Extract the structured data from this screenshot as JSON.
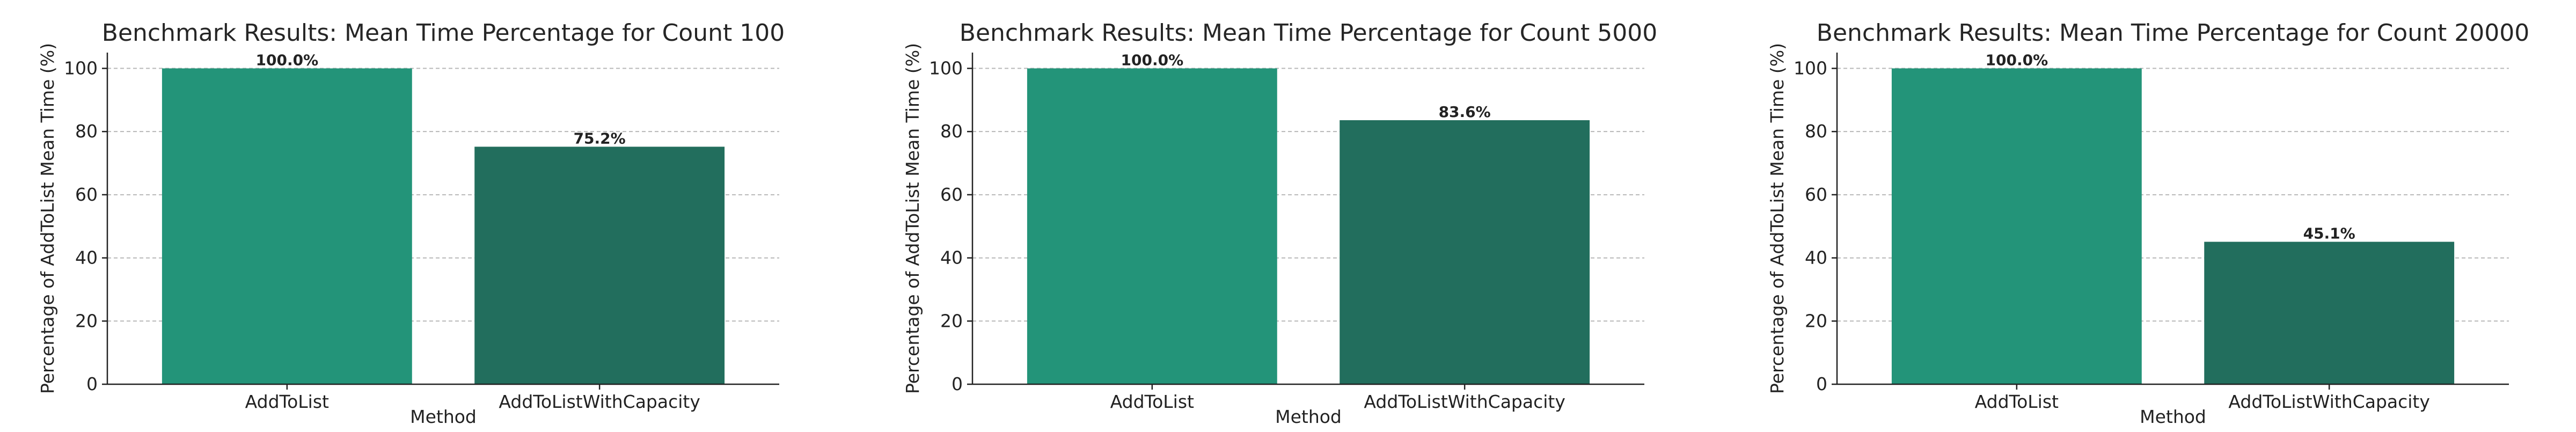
{
  "colors": {
    "bar_primary": "#239479",
    "bar_secondary": "#226e5d",
    "grid": "#b8b8b8",
    "axis": "#222222"
  },
  "chart_data": [
    {
      "type": "bar",
      "title": "Benchmark Results: Mean Time Percentage for Count 100",
      "xlabel": "Method",
      "ylabel": "Percentage of AddToList Mean Time (%)",
      "categories": [
        "AddToList",
        "AddToListWithCapacity"
      ],
      "values": [
        100.0,
        75.2
      ],
      "value_labels": [
        "100.0%",
        "75.2%"
      ],
      "ylim": [
        0,
        105
      ],
      "yticks": [
        0,
        20,
        40,
        60,
        80,
        100
      ],
      "grid": "y-dashed",
      "legend": "none"
    },
    {
      "type": "bar",
      "title": "Benchmark Results: Mean Time Percentage for Count 5000",
      "xlabel": "Method",
      "ylabel": "Percentage of AddToList Mean Time (%)",
      "categories": [
        "AddToList",
        "AddToListWithCapacity"
      ],
      "values": [
        100.0,
        83.6
      ],
      "value_labels": [
        "100.0%",
        "83.6%"
      ],
      "ylim": [
        0,
        105
      ],
      "yticks": [
        0,
        20,
        40,
        60,
        80,
        100
      ],
      "grid": "y-dashed",
      "legend": "none"
    },
    {
      "type": "bar",
      "title": "Benchmark Results: Mean Time Percentage for Count 20000",
      "xlabel": "Method",
      "ylabel": "Percentage of AddToList Mean Time (%)",
      "categories": [
        "AddToList",
        "AddToListWithCapacity"
      ],
      "values": [
        100.0,
        45.1
      ],
      "value_labels": [
        "100.0%",
        "45.1%"
      ],
      "ylim": [
        0,
        105
      ],
      "yticks": [
        0,
        20,
        40,
        60,
        80,
        100
      ],
      "grid": "y-dashed",
      "legend": "none"
    }
  ]
}
